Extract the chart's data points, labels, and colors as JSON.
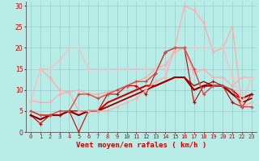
{
  "xlabel": "Vent moyen/en rafales ( km/h )",
  "xlim": [
    -0.5,
    23.5
  ],
  "ylim": [
    0,
    31
  ],
  "xticks": [
    0,
    1,
    2,
    3,
    4,
    5,
    6,
    7,
    8,
    9,
    10,
    11,
    12,
    13,
    14,
    15,
    16,
    17,
    18,
    19,
    20,
    21,
    22,
    23
  ],
  "yticks": [
    0,
    5,
    10,
    15,
    20,
    25,
    30
  ],
  "background_color": "#b8ece6",
  "grid_color": "#99cccc",
  "lines": [
    {
      "x": [
        0,
        1,
        2,
        3,
        4,
        5,
        6,
        7,
        8,
        9,
        10,
        11,
        12,
        13,
        14,
        15,
        16,
        17,
        18,
        19,
        20,
        21,
        22,
        23
      ],
      "y": [
        4,
        2,
        4,
        4,
        5,
        0,
        5,
        5,
        9,
        9,
        11,
        11,
        9,
        14,
        19,
        20,
        20,
        7,
        11,
        12,
        11,
        7,
        6,
        9
      ],
      "color": "#cc0000",
      "lw": 0.8,
      "marker": "+",
      "ms": 3.5
    },
    {
      "x": [
        0,
        1,
        2,
        3,
        4,
        5,
        6,
        7,
        8,
        9,
        10,
        11,
        12,
        13,
        14,
        15,
        16,
        17,
        18,
        19,
        20,
        21,
        22,
        23
      ],
      "y": [
        4,
        3,
        4,
        4,
        5,
        4,
        5,
        5,
        7,
        8,
        9,
        10,
        11,
        11,
        12,
        13,
        13,
        10,
        11,
        11,
        11,
        9,
        8,
        9
      ],
      "color": "#cc0000",
      "lw": 1.5,
      "marker": null,
      "ms": 0
    },
    {
      "x": [
        0,
        1,
        2,
        3,
        4,
        5,
        6,
        7,
        8,
        9,
        10,
        11,
        12,
        13,
        14,
        15,
        16,
        17,
        18,
        19,
        20,
        21,
        22,
        23
      ],
      "y": [
        4,
        3,
        4,
        4,
        5,
        4,
        5,
        5,
        6,
        7,
        8,
        9,
        10,
        11,
        12,
        13,
        13,
        10,
        11,
        11,
        11,
        9,
        7,
        8
      ],
      "color": "#880000",
      "lw": 1.2,
      "marker": null,
      "ms": 0
    },
    {
      "x": [
        0,
        1,
        2,
        3,
        4,
        5,
        6,
        7,
        8,
        9,
        10,
        11,
        12,
        13,
        14,
        15,
        16,
        17,
        18,
        19,
        20,
        21,
        22,
        23
      ],
      "y": [
        5,
        4,
        4,
        4,
        5,
        5,
        5,
        5,
        6,
        7,
        8,
        9,
        10,
        11,
        12,
        13,
        13,
        11,
        12,
        11,
        11,
        10,
        8,
        9
      ],
      "color": "#aa0000",
      "lw": 1.0,
      "marker": null,
      "ms": 0
    },
    {
      "x": [
        0,
        1,
        2,
        3,
        4,
        5,
        6,
        7,
        8,
        9,
        10,
        11,
        12,
        13,
        14,
        15,
        16,
        17,
        18,
        19,
        20,
        21,
        22,
        23
      ],
      "y": [
        7.5,
        7,
        7,
        9,
        9.5,
        10,
        9,
        9,
        9.5,
        10,
        11,
        12,
        13,
        15,
        16,
        19,
        20,
        14,
        15,
        13,
        13,
        11,
        13,
        13
      ],
      "color": "#ffaaaa",
      "lw": 0.9,
      "marker": "+",
      "ms": 3
    },
    {
      "x": [
        1,
        2,
        3,
        4,
        5,
        6,
        7,
        8,
        9,
        10,
        11,
        12,
        13,
        14,
        15,
        16,
        17,
        18,
        19,
        20,
        21,
        22,
        23
      ],
      "y": [
        15,
        13,
        10,
        9.5,
        5,
        5,
        5,
        5,
        6,
        7,
        8,
        10,
        12,
        13,
        20,
        30,
        29,
        26,
        19,
        20,
        25,
        6,
        7
      ],
      "color": "#ffaaaa",
      "lw": 0.9,
      "marker": "+",
      "ms": 3
    },
    {
      "x": [
        0,
        1,
        2,
        3,
        4,
        5,
        6,
        7,
        8,
        9,
        10,
        11,
        12,
        13,
        14,
        15,
        16,
        17,
        18,
        19,
        20,
        21,
        22,
        23
      ],
      "y": [
        7,
        15,
        15,
        17,
        20,
        20,
        15,
        15,
        15,
        15,
        15,
        15,
        15,
        15,
        15,
        20,
        20,
        20,
        20,
        20,
        20,
        13,
        7,
        13
      ],
      "color": "#ffbbbb",
      "lw": 0.9,
      "marker": "+",
      "ms": 3
    },
    {
      "x": [
        0,
        1,
        2,
        3,
        4,
        5,
        6,
        7,
        8,
        9,
        10,
        11,
        12,
        13,
        14,
        15,
        16,
        17,
        18,
        19,
        20,
        21,
        22,
        23
      ],
      "y": [
        5,
        4,
        4,
        5,
        5,
        9,
        9,
        8,
        9,
        10,
        11,
        12,
        12,
        14,
        19,
        20,
        20,
        15,
        9,
        11,
        11,
        10,
        6,
        6
      ],
      "color": "#dd4444",
      "lw": 1.0,
      "marker": "+",
      "ms": 3.5
    }
  ]
}
